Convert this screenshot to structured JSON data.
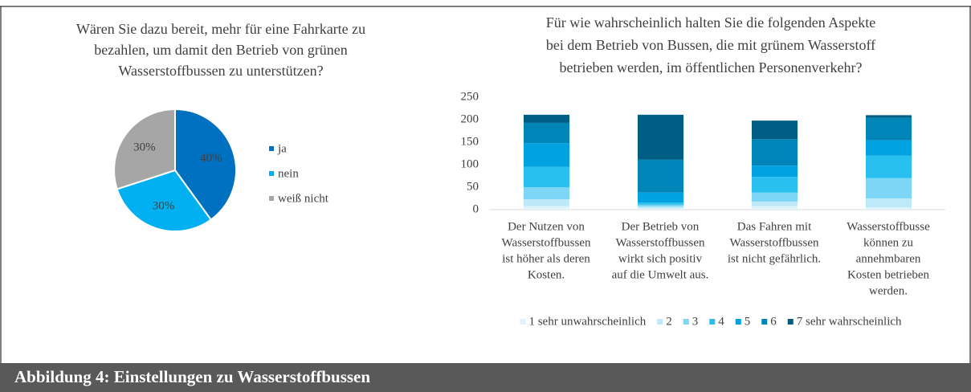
{
  "chart_data": [
    {
      "type": "pie",
      "title": [
        "Wären Sie dazu bereit, mehr für eine Fahrkarte zu",
        "bezahlen, um damit den Betrieb von grünen",
        "Wasserstoffbussen zu unterstützen?"
      ],
      "categories": [
        "ja",
        "nein",
        "weiß nicht"
      ],
      "values": [
        40,
        30,
        30
      ],
      "value_labels": [
        "40%",
        "30%",
        "30%"
      ],
      "colors": [
        "#0070c0",
        "#00b0f0",
        "#a6a6a6"
      ],
      "legend": "right"
    },
    {
      "type": "stacked_bar",
      "title": [
        "Für wie wahrscheinlich halten Sie die folgenden Aspekte",
        "bei dem Betrieb von Bussen, die mit grünem Wasserstoff",
        "betrieben werden, im öffentlichen Personenverkehr?"
      ],
      "categories": [
        [
          "Der Nutzen von",
          "Wasserstoffbussen",
          "ist höher als deren",
          "Kosten."
        ],
        [
          "Der Betrieb von",
          "Wasserstoffbussen",
          "wirkt sich positiv",
          "auf die Umwelt aus."
        ],
        [
          "Das Fahren mit",
          "Wasserstoffbussen",
          "ist nicht gefährlich."
        ],
        [
          "Wasserstoffbusse",
          "können zu",
          "annehmbaren",
          "Kosten betrieben",
          "werden."
        ]
      ],
      "series": [
        {
          "name": "1 sehr unwahrscheinlich",
          "color": "#dff3fb",
          "values": [
            8,
            3,
            8,
            5
          ]
        },
        {
          "name": "2",
          "color": "#bde9f9",
          "values": [
            15,
            4,
            10,
            20
          ]
        },
        {
          "name": "3",
          "color": "#7dd6f5",
          "values": [
            27,
            4,
            20,
            45
          ]
        },
        {
          "name": "4",
          "color": "#29c0f0",
          "values": [
            45,
            5,
            35,
            50
          ]
        },
        {
          "name": "5",
          "color": "#00a3e0",
          "values": [
            53,
            22,
            25,
            34
          ]
        },
        {
          "name": "6",
          "color": "#0085b8",
          "values": [
            45,
            73,
            59,
            50
          ]
        },
        {
          "name": "7 sehr wahrscheinlich",
          "color": "#005e85",
          "values": [
            18,
            100,
            41,
            6
          ]
        }
      ],
      "ylim": [
        0,
        250
      ],
      "yticks": [
        0,
        50,
        100,
        150,
        200,
        250
      ],
      "grid": false,
      "legend": "bottom"
    }
  ],
  "caption": "Abbildung 4: Einstellungen zu Wasserstoffbussen"
}
